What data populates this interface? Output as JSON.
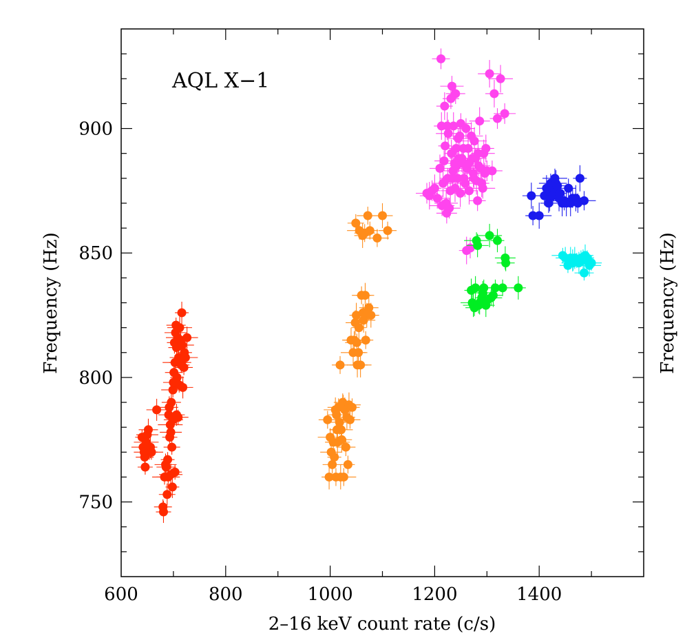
{
  "chart_data": {
    "type": "scatter",
    "title": "",
    "xlabel": "2–16 keV count rate (c/s)",
    "ylabel": "Frequency (Hz)",
    "ylabel_right": "Frequency (Hz)",
    "annotation": "AQL X−1",
    "xlim": [
      600,
      1600
    ],
    "ylim": [
      720,
      940
    ],
    "x_ticks": [
      600,
      800,
      1000,
      1200,
      1400
    ],
    "y_ticks": [
      750,
      800,
      850,
      900
    ],
    "error_bars": true,
    "series": [
      {
        "color": "#ff2a00",
        "points": [
          [
            640,
            776
          ],
          [
            642,
            772
          ],
          [
            644,
            770
          ],
          [
            645,
            768
          ],
          [
            646,
            764
          ],
          [
            648,
            774
          ],
          [
            650,
            777
          ],
          [
            652,
            779
          ],
          [
            654,
            770
          ],
          [
            656,
            772
          ],
          [
            658,
            770
          ],
          [
            668,
            787
          ],
          [
            680,
            748
          ],
          [
            681,
            746
          ],
          [
            683,
            760
          ],
          [
            685,
            765
          ],
          [
            686,
            764
          ],
          [
            688,
            753
          ],
          [
            689,
            767
          ],
          [
            690,
            760
          ],
          [
            691,
            785
          ],
          [
            692,
            788
          ],
          [
            693,
            776
          ],
          [
            694,
            781
          ],
          [
            695,
            778
          ],
          [
            696,
            790
          ],
          [
            697,
            772
          ],
          [
            698,
            756
          ],
          [
            699,
            795
          ],
          [
            700,
            798
          ],
          [
            701,
            802
          ],
          [
            702,
            814
          ],
          [
            703,
            806
          ],
          [
            704,
            818
          ],
          [
            705,
            821
          ],
          [
            706,
            812
          ],
          [
            707,
            800
          ],
          [
            708,
            816
          ],
          [
            709,
            784
          ],
          [
            710,
            808
          ],
          [
            711,
            797
          ],
          [
            712,
            820
          ],
          [
            713,
            806
          ],
          [
            714,
            815
          ],
          [
            715,
            805
          ],
          [
            716,
            826
          ],
          [
            717,
            813
          ],
          [
            718,
            796
          ],
          [
            720,
            804
          ],
          [
            721,
            810
          ],
          [
            723,
            808
          ],
          [
            726,
            816
          ],
          [
            700,
            783
          ],
          [
            706,
            785
          ],
          [
            703,
            762
          ],
          [
            695,
            761
          ]
        ]
      },
      {
        "color": "#ff8c1a",
        "points": [
          [
            995,
            783
          ],
          [
            998,
            760
          ],
          [
            1000,
            776
          ],
          [
            1002,
            770
          ],
          [
            1004,
            765
          ],
          [
            1006,
            774
          ],
          [
            1008,
            768
          ],
          [
            1010,
            787
          ],
          [
            1011,
            760
          ],
          [
            1012,
            785
          ],
          [
            1013,
            779
          ],
          [
            1014,
            774
          ],
          [
            1016,
            788
          ],
          [
            1018,
            782
          ],
          [
            1019,
            805
          ],
          [
            1020,
            760
          ],
          [
            1021,
            779
          ],
          [
            1022,
            775
          ],
          [
            1024,
            790
          ],
          [
            1025,
            788
          ],
          [
            1026,
            760
          ],
          [
            1028,
            787
          ],
          [
            1030,
            772
          ],
          [
            1032,
            784
          ],
          [
            1034,
            765
          ],
          [
            1036,
            789
          ],
          [
            1038,
            783
          ],
          [
            1040,
            815
          ],
          [
            1042,
            788
          ],
          [
            1044,
            810
          ],
          [
            1046,
            815
          ],
          [
            1048,
            822
          ],
          [
            1049,
            862
          ],
          [
            1050,
            825
          ],
          [
            1051,
            814
          ],
          [
            1052,
            805
          ],
          [
            1054,
            810
          ],
          [
            1055,
            820
          ],
          [
            1056,
            859
          ],
          [
            1058,
            805
          ],
          [
            1060,
            833
          ],
          [
            1062,
            857
          ],
          [
            1063,
            826
          ],
          [
            1064,
            823
          ],
          [
            1066,
            858
          ],
          [
            1067,
            833
          ],
          [
            1068,
            815
          ],
          [
            1070,
            825
          ],
          [
            1072,
            865
          ],
          [
            1074,
            828
          ],
          [
            1076,
            859
          ],
          [
            1078,
            825
          ],
          [
            1090,
            856
          ],
          [
            1100,
            865
          ],
          [
            1110,
            859
          ]
        ]
      },
      {
        "color": "#ff44ee",
        "points": [
          [
            1185,
            874
          ],
          [
            1190,
            873
          ],
          [
            1195,
            875
          ],
          [
            1200,
            876
          ],
          [
            1205,
            872
          ],
          [
            1210,
            884
          ],
          [
            1212,
            928
          ],
          [
            1213,
            901
          ],
          [
            1214,
            869
          ],
          [
            1216,
            878
          ],
          [
            1218,
            887
          ],
          [
            1219,
            909
          ],
          [
            1220,
            893
          ],
          [
            1222,
            870
          ],
          [
            1223,
            866
          ],
          [
            1224,
            901
          ],
          [
            1225,
            880
          ],
          [
            1226,
            898
          ],
          [
            1228,
            868
          ],
          [
            1230,
            875
          ],
          [
            1231,
            912
          ],
          [
            1232,
            890
          ],
          [
            1233,
            917
          ],
          [
            1234,
            880
          ],
          [
            1235,
            883
          ],
          [
            1236,
            901
          ],
          [
            1238,
            886
          ],
          [
            1239,
            876
          ],
          [
            1240,
            914
          ],
          [
            1241,
            892
          ],
          [
            1242,
            885
          ],
          [
            1244,
            880
          ],
          [
            1245,
            896
          ],
          [
            1246,
            888
          ],
          [
            1248,
            897
          ],
          [
            1249,
            874
          ],
          [
            1250,
            902
          ],
          [
            1252,
            888
          ],
          [
            1254,
            886
          ],
          [
            1255,
            892
          ],
          [
            1256,
            880
          ],
          [
            1258,
            878
          ],
          [
            1260,
            900
          ],
          [
            1261,
            851
          ],
          [
            1262,
            884
          ],
          [
            1264,
            892
          ],
          [
            1265,
            886
          ],
          [
            1266,
            875
          ],
          [
            1268,
            852
          ],
          [
            1270,
            897
          ],
          [
            1272,
            888
          ],
          [
            1274,
            882
          ],
          [
            1275,
            880
          ],
          [
            1276,
            895
          ],
          [
            1278,
            888
          ],
          [
            1280,
            879
          ],
          [
            1282,
            871
          ],
          [
            1283,
            890
          ],
          [
            1284,
            885
          ],
          [
            1286,
            903
          ],
          [
            1288,
            884
          ],
          [
            1290,
            878
          ],
          [
            1292,
            876
          ],
          [
            1294,
            890
          ],
          [
            1296,
            882
          ],
          [
            1298,
            892
          ],
          [
            1300,
            883
          ],
          [
            1305,
            922
          ],
          [
            1310,
            883
          ],
          [
            1314,
            914
          ],
          [
            1320,
            904
          ],
          [
            1326,
            920
          ],
          [
            1334,
            906
          ]
        ]
      },
      {
        "color": "#00ee22",
        "points": [
          [
            1270,
            835
          ],
          [
            1272,
            830
          ],
          [
            1274,
            829
          ],
          [
            1276,
            828
          ],
          [
            1278,
            836
          ],
          [
            1280,
            855
          ],
          [
            1282,
            853
          ],
          [
            1284,
            829
          ],
          [
            1286,
            830
          ],
          [
            1290,
            832
          ],
          [
            1292,
            834
          ],
          [
            1294,
            836
          ],
          [
            1298,
            829
          ],
          [
            1300,
            831
          ],
          [
            1305,
            857
          ],
          [
            1308,
            832
          ],
          [
            1312,
            833
          ],
          [
            1316,
            836
          ],
          [
            1320,
            855
          ],
          [
            1330,
            836
          ],
          [
            1335,
            848
          ],
          [
            1336,
            846
          ],
          [
            1360,
            836
          ]
        ]
      },
      {
        "color": "#1a1aee",
        "points": [
          [
            1385,
            873
          ],
          [
            1388,
            865
          ],
          [
            1400,
            865
          ],
          [
            1410,
            873
          ],
          [
            1414,
            876
          ],
          [
            1418,
            870
          ],
          [
            1420,
            872
          ],
          [
            1422,
            878
          ],
          [
            1424,
            874
          ],
          [
            1426,
            873
          ],
          [
            1428,
            876
          ],
          [
            1430,
            880
          ],
          [
            1432,
            878
          ],
          [
            1435,
            877
          ],
          [
            1438,
            872
          ],
          [
            1440,
            874
          ],
          [
            1444,
            870
          ],
          [
            1448,
            871
          ],
          [
            1452,
            870
          ],
          [
            1456,
            876
          ],
          [
            1460,
            870
          ],
          [
            1464,
            872
          ],
          [
            1470,
            872
          ],
          [
            1474,
            870
          ],
          [
            1478,
            880
          ],
          [
            1486,
            871
          ]
        ]
      },
      {
        "color": "#00f0f0",
        "points": [
          [
            1445,
            849
          ],
          [
            1450,
            848
          ],
          [
            1455,
            845
          ],
          [
            1460,
            848
          ],
          [
            1465,
            846
          ],
          [
            1468,
            848
          ],
          [
            1472,
            847
          ],
          [
            1476,
            846
          ],
          [
            1480,
            848
          ],
          [
            1484,
            847
          ],
          [
            1486,
            842
          ],
          [
            1488,
            849
          ],
          [
            1492,
            848
          ],
          [
            1496,
            845
          ],
          [
            1500,
            846
          ],
          [
            1464,
            847
          ]
        ]
      }
    ]
  }
}
